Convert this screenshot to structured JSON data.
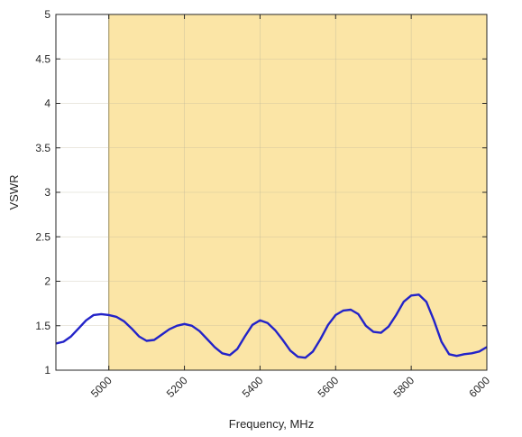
{
  "chart_data": {
    "type": "line",
    "xlabel": "Frequency, MHz",
    "ylabel": "VSWR",
    "xlim": [
      4860,
      6000
    ],
    "ylim": [
      1,
      5
    ],
    "x_ticks": [
      5000,
      5200,
      5400,
      5600,
      5800,
      6000
    ],
    "x_tick_labels": [
      "5000",
      "5200",
      "5400",
      "5600",
      "5800",
      "6000"
    ],
    "y_ticks": [
      1,
      1.5,
      2,
      2.5,
      3,
      3.5,
      4,
      4.5,
      5
    ],
    "y_tick_labels": [
      "1",
      "1.5",
      "2",
      "2.5",
      "3",
      "3.5",
      "4",
      "4.5",
      "5"
    ],
    "grid": true,
    "highlight_band": {
      "x_start": 5000,
      "x_end": 6000,
      "color": "#fbe5a6"
    },
    "series": [
      {
        "color": "#2323c8",
        "x": [
          4860,
          4880,
          4900,
          4920,
          4940,
          4960,
          4980,
          5000,
          5020,
          5040,
          5060,
          5080,
          5100,
          5120,
          5140,
          5160,
          5180,
          5200,
          5220,
          5240,
          5260,
          5280,
          5300,
          5320,
          5340,
          5360,
          5380,
          5400,
          5420,
          5440,
          5460,
          5480,
          5500,
          5520,
          5540,
          5560,
          5580,
          5600,
          5620,
          5640,
          5660,
          5680,
          5700,
          5720,
          5740,
          5760,
          5780,
          5800,
          5820,
          5840,
          5860,
          5880,
          5900,
          5920,
          5940,
          5960,
          5980,
          6000
        ],
        "y": [
          1.3,
          1.32,
          1.38,
          1.47,
          1.56,
          1.62,
          1.63,
          1.62,
          1.6,
          1.55,
          1.47,
          1.38,
          1.33,
          1.34,
          1.4,
          1.46,
          1.5,
          1.52,
          1.5,
          1.44,
          1.35,
          1.26,
          1.19,
          1.17,
          1.24,
          1.38,
          1.51,
          1.56,
          1.53,
          1.45,
          1.34,
          1.22,
          1.15,
          1.14,
          1.21,
          1.35,
          1.51,
          1.62,
          1.67,
          1.68,
          1.63,
          1.5,
          1.43,
          1.42,
          1.49,
          1.62,
          1.77,
          1.84,
          1.85,
          1.77,
          1.56,
          1.32,
          1.18,
          1.16,
          1.18,
          1.19,
          1.21,
          1.26
        ]
      }
    ]
  }
}
